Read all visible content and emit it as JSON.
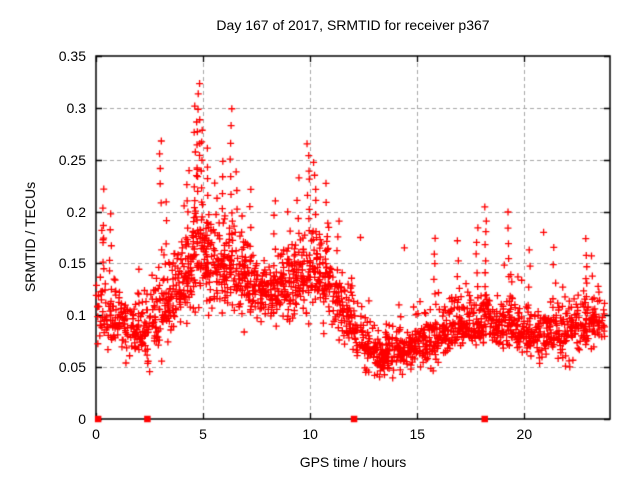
{
  "chart_data": {
    "type": "scatter",
    "title": "Day 167 of 2017, SRMTID for receiver p367",
    "xlabel": "GPS time / hours",
    "ylabel": "SRMTID / TECUs",
    "xlim": [
      0,
      24
    ],
    "ylim": [
      0,
      0.35
    ],
    "xticks": [
      0,
      5,
      10,
      15,
      20
    ],
    "xtick_labels": [
      "0",
      "5",
      "10",
      "15",
      "20"
    ],
    "yticks": [
      0,
      0.05,
      0.1,
      0.15,
      0.2,
      0.25,
      0.3,
      0.35
    ],
    "ytick_labels": [
      "0",
      "0.05",
      "0.1",
      "0.15",
      "0.2",
      "0.25",
      "0.3",
      "0.35"
    ],
    "grid": {
      "visible": true,
      "style": "dashed",
      "color": "#a8a8a8"
    },
    "border_color": "#000000",
    "marker": {
      "shape": "plus",
      "color": "#ff0000",
      "size": 7
    },
    "legend": "none",
    "x_data_max": 23.75,
    "seed": 20170167,
    "density_bins": {
      "comment": "Dense scatter of ~2200 points summarized per 0.5 h bin as [count, y_min, y_center, y_max]; points concentrated near y_center.",
      "bin_width": 0.5,
      "start": 0,
      "bins": [
        [
          34,
          0.055,
          0.1,
          0.185
        ],
        [
          38,
          0.05,
          0.095,
          0.16
        ],
        [
          40,
          0.045,
          0.09,
          0.145
        ],
        [
          40,
          0.04,
          0.085,
          0.14
        ],
        [
          40,
          0.04,
          0.085,
          0.15
        ],
        [
          42,
          0.045,
          0.095,
          0.155
        ],
        [
          46,
          0.055,
          0.11,
          0.175
        ],
        [
          48,
          0.06,
          0.125,
          0.19
        ],
        [
          50,
          0.075,
          0.14,
          0.21
        ],
        [
          52,
          0.09,
          0.16,
          0.24
        ],
        [
          50,
          0.09,
          0.155,
          0.23
        ],
        [
          48,
          0.08,
          0.14,
          0.21
        ],
        [
          48,
          0.09,
          0.145,
          0.215
        ],
        [
          46,
          0.08,
          0.135,
          0.2
        ],
        [
          46,
          0.08,
          0.13,
          0.19
        ],
        [
          44,
          0.075,
          0.125,
          0.18
        ],
        [
          44,
          0.075,
          0.125,
          0.18
        ],
        [
          44,
          0.08,
          0.13,
          0.185
        ],
        [
          46,
          0.085,
          0.135,
          0.19
        ],
        [
          48,
          0.09,
          0.14,
          0.2
        ],
        [
          48,
          0.09,
          0.145,
          0.2
        ],
        [
          46,
          0.08,
          0.13,
          0.19
        ],
        [
          42,
          0.065,
          0.115,
          0.175
        ],
        [
          40,
          0.055,
          0.095,
          0.15
        ],
        [
          38,
          0.045,
          0.08,
          0.13
        ],
        [
          40,
          0.033,
          0.068,
          0.115
        ],
        [
          44,
          0.03,
          0.058,
          0.1
        ],
        [
          44,
          0.035,
          0.063,
          0.105
        ],
        [
          44,
          0.038,
          0.068,
          0.11
        ],
        [
          44,
          0.04,
          0.07,
          0.11
        ],
        [
          46,
          0.042,
          0.073,
          0.115
        ],
        [
          46,
          0.045,
          0.078,
          0.125
        ],
        [
          44,
          0.045,
          0.082,
          0.13
        ],
        [
          44,
          0.05,
          0.088,
          0.14
        ],
        [
          44,
          0.055,
          0.09,
          0.14
        ],
        [
          44,
          0.055,
          0.093,
          0.15
        ],
        [
          44,
          0.06,
          0.098,
          0.155
        ],
        [
          42,
          0.055,
          0.09,
          0.14
        ],
        [
          44,
          0.055,
          0.093,
          0.15
        ],
        [
          42,
          0.05,
          0.088,
          0.145
        ],
        [
          42,
          0.05,
          0.083,
          0.135
        ],
        [
          40,
          0.048,
          0.08,
          0.13
        ],
        [
          40,
          0.05,
          0.083,
          0.135
        ],
        [
          40,
          0.05,
          0.083,
          0.13
        ],
        [
          40,
          0.05,
          0.088,
          0.14
        ],
        [
          40,
          0.055,
          0.09,
          0.14
        ],
        [
          38,
          0.058,
          0.095,
          0.145
        ],
        [
          14,
          0.06,
          0.095,
          0.14
        ]
      ]
    },
    "spike_columns": {
      "comment": "Distinct near-vertical strings of points as [x, y_low, y_high, count].",
      "columns": [
        [
          0.3,
          0.15,
          0.22,
          5
        ],
        [
          0.7,
          0.14,
          0.2,
          5
        ],
        [
          3.0,
          0.21,
          0.27,
          5
        ],
        [
          3.3,
          0.15,
          0.21,
          4
        ],
        [
          4.3,
          0.17,
          0.24,
          6
        ],
        [
          4.65,
          0.2,
          0.3,
          10
        ],
        [
          4.78,
          0.22,
          0.322,
          10
        ],
        [
          4.95,
          0.18,
          0.28,
          8
        ],
        [
          5.2,
          0.17,
          0.26,
          7
        ],
        [
          5.6,
          0.16,
          0.23,
          5
        ],
        [
          5.95,
          0.17,
          0.25,
          6
        ],
        [
          6.3,
          0.18,
          0.3,
          8
        ],
        [
          6.55,
          0.16,
          0.24,
          5
        ],
        [
          7.2,
          0.15,
          0.22,
          5
        ],
        [
          8.35,
          0.15,
          0.21,
          5
        ],
        [
          9.0,
          0.15,
          0.2,
          4
        ],
        [
          9.45,
          0.16,
          0.23,
          5
        ],
        [
          9.9,
          0.18,
          0.265,
          8
        ],
        [
          10.2,
          0.17,
          0.25,
          7
        ],
        [
          10.8,
          0.15,
          0.23,
          5
        ],
        [
          11.3,
          0.13,
          0.19,
          5
        ],
        [
          15.8,
          0.11,
          0.175,
          6
        ],
        [
          16.9,
          0.11,
          0.17,
          5
        ],
        [
          17.8,
          0.13,
          0.185,
          5
        ],
        [
          18.2,
          0.14,
          0.205,
          6
        ],
        [
          19.3,
          0.14,
          0.2,
          5
        ],
        [
          20.2,
          0.11,
          0.165,
          4
        ],
        [
          21.4,
          0.1,
          0.165,
          5
        ],
        [
          22.9,
          0.1,
          0.175,
          6
        ],
        [
          23.2,
          0.1,
          0.155,
          4
        ]
      ]
    },
    "outliers": [
      [
        14.4,
        0.165
      ],
      [
        20.9,
        0.18
      ],
      [
        12.35,
        0.175
      ]
    ],
    "zero_markers": {
      "shape": "filled-square",
      "color": "#ff0000",
      "size": 6.5,
      "y": 0,
      "x": [
        0.1,
        2.4,
        12.05,
        18.15
      ]
    }
  }
}
